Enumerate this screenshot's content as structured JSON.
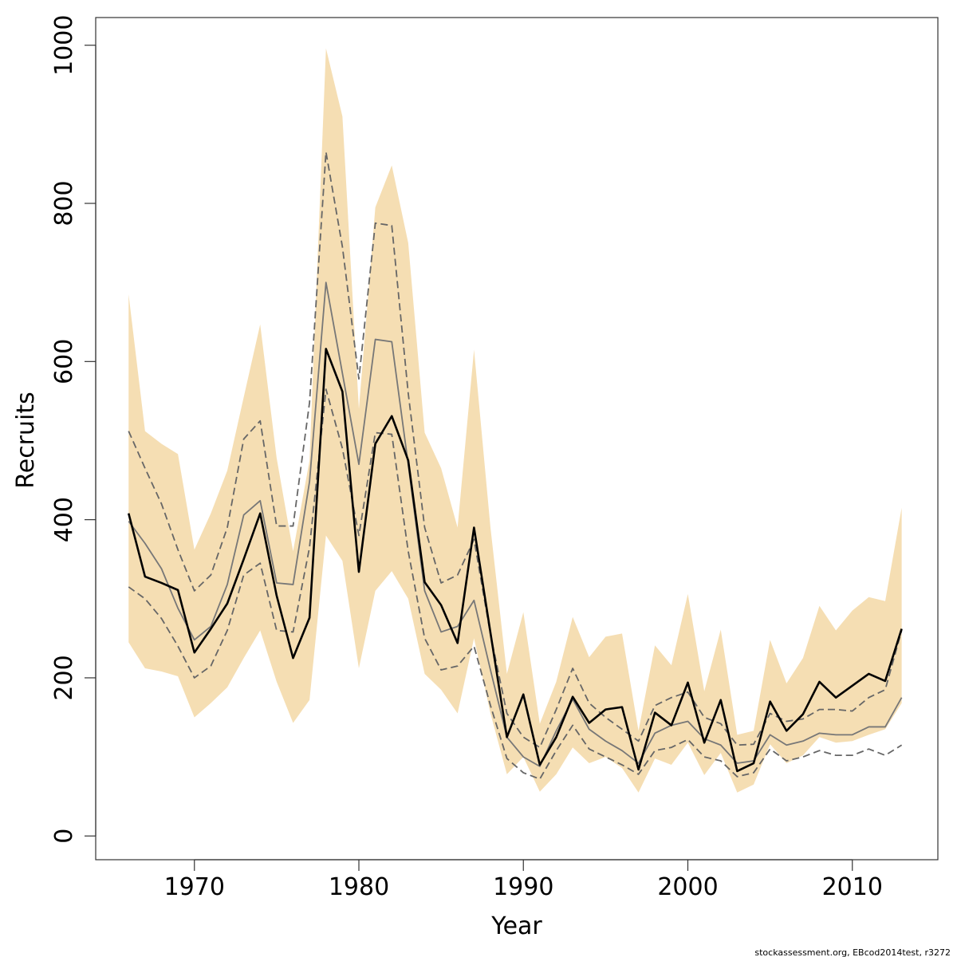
{
  "chart_data": {
    "type": "line",
    "xlabel": "Year",
    "ylabel": "Recruits",
    "xlim": [
      1964,
      2015.2
    ],
    "ylim": [
      -30,
      1035
    ],
    "x_ticks": [
      1970,
      1980,
      1990,
      2000,
      2010
    ],
    "y_ticks": [
      0,
      200,
      400,
      600,
      800,
      1000
    ],
    "grid": false,
    "legend": "none",
    "x": [
      1966,
      1967,
      1968,
      1969,
      1970,
      1971,
      1972,
      1973,
      1974,
      1975,
      1976,
      1977,
      1978,
      1979,
      1980,
      1981,
      1982,
      1983,
      1984,
      1985,
      1986,
      1987,
      1988,
      1989,
      1990,
      1991,
      1992,
      1993,
      1994,
      1995,
      1996,
      1997,
      1998,
      1999,
      2000,
      2001,
      2002,
      2003,
      2004,
      2005,
      2006,
      2007,
      2008,
      2009,
      2010,
      2011,
      2012,
      2013
    ],
    "band": {
      "lower": [
        245,
        212,
        208,
        202,
        150,
        168,
        188,
        225,
        260,
        195,
        143,
        172,
        380,
        348,
        212,
        310,
        335,
        300,
        205,
        185,
        155,
        250,
        155,
        78,
        100,
        56,
        78,
        112,
        92,
        100,
        86,
        55,
        98,
        90,
        118,
        77,
        105,
        55,
        65,
        116,
        92,
        102,
        125,
        118,
        120,
        128,
        135,
        168
      ],
      "upper": [
        685,
        512,
        496,
        483,
        362,
        408,
        462,
        555,
        647,
        478,
        360,
        475,
        996,
        910,
        540,
        795,
        848,
        750,
        510,
        465,
        390,
        615,
        390,
        205,
        283,
        142,
        195,
        277,
        226,
        252,
        256,
        133,
        241,
        216,
        306,
        183,
        261,
        128,
        133,
        248,
        193,
        225,
        291,
        260,
        285,
        302,
        297,
        415
      ],
      "color": "#f5deb3"
    },
    "series": [
      {
        "values": [
          408,
          328,
          320,
          311,
          232,
          262,
          294,
          350,
          408,
          304,
          225,
          276,
          616,
          562,
          334,
          496,
          531,
          475,
          321,
          292,
          244,
          390,
          257,
          125,
          179,
          90,
          125,
          176,
          143,
          160,
          163,
          84,
          156,
          140,
          194,
          118,
          172,
          82,
          92,
          170,
          133,
          154,
          195,
          175,
          190,
          205,
          196,
          262
        ],
        "style": "solid",
        "color": "#000000",
        "width": 2.6
      },
      {
        "values": [
          398,
          370,
          338,
          288,
          248,
          265,
          318,
          406,
          424,
          320,
          318,
          448,
          700,
          585,
          470,
          628,
          625,
          470,
          310,
          258,
          265,
          298,
          210,
          125,
          100,
          88,
          133,
          173,
          135,
          120,
          108,
          92,
          130,
          140,
          145,
          123,
          115,
          92,
          95,
          128,
          115,
          120,
          130,
          128,
          128,
          138,
          138,
          175
        ],
        "style": "solid",
        "color": "#777777",
        "width": 1.8
      },
      {
        "values": [
          512,
          465,
          420,
          362,
          310,
          330,
          390,
          502,
          525,
          392,
          392,
          548,
          865,
          745,
          578,
          775,
          772,
          560,
          390,
          320,
          330,
          375,
          255,
          155,
          125,
          112,
          160,
          212,
          168,
          150,
          135,
          120,
          165,
          175,
          182,
          150,
          142,
          115,
          116,
          155,
          145,
          148,
          160,
          160,
          158,
          175,
          185,
          260
        ],
        "style": "dashed",
        "color": "#666666",
        "width": 1.8
      },
      {
        "values": [
          315,
          300,
          275,
          240,
          200,
          215,
          260,
          330,
          345,
          260,
          258,
          365,
          565,
          490,
          380,
          510,
          508,
          360,
          250,
          210,
          215,
          240,
          165,
          98,
          80,
          72,
          108,
          140,
          110,
          100,
          90,
          78,
          108,
          112,
          122,
          100,
          95,
          75,
          80,
          110,
          95,
          100,
          108,
          102,
          102,
          110,
          102,
          115
        ],
        "style": "dashed",
        "color": "#666666",
        "width": 1.8
      }
    ],
    "footer": "stockassessment.org, EBcod2014test, r3272"
  }
}
